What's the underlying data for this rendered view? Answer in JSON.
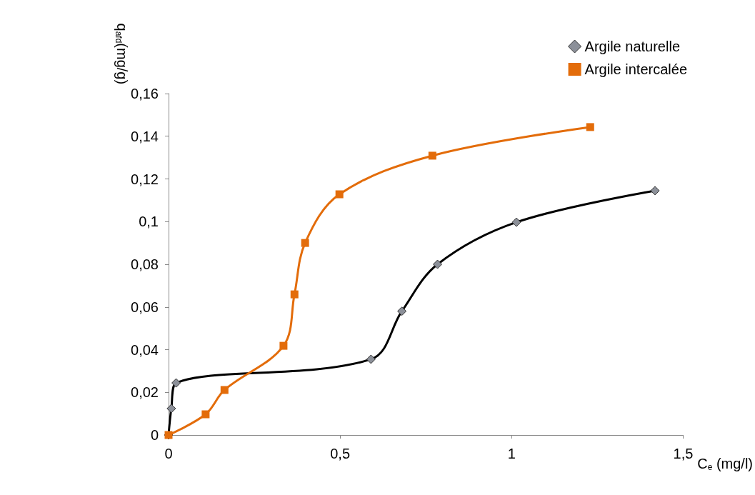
{
  "chart_data": {
    "type": "line",
    "xlabel": "C$_{e}$ (mg/l)",
    "ylabel": "q$_{afd}$(mg/g)",
    "series": [
      {
        "name": "Argile naturelle",
        "color": "#000000",
        "marker": "diamond",
        "x": [
          0,
          0.008,
          0.022,
          0.59,
          0.68,
          0.784,
          1.014,
          1.418
        ],
        "values": [
          0,
          0.0124,
          0.0244,
          0.0355,
          0.058,
          0.08,
          0.0997,
          0.1145
        ]
      },
      {
        "name": "Argile intercalée",
        "color": "#e36c0a",
        "marker": "square",
        "x": [
          0,
          0.108,
          0.163,
          0.335,
          0.367,
          0.398,
          0.498,
          0.769,
          1.229
        ],
        "values": [
          0,
          0.0097,
          0.0211,
          0.0418,
          0.0659,
          0.09,
          0.1128,
          0.1309,
          0.1443
        ]
      }
    ],
    "xlim": [
      0,
      1.5
    ],
    "xticks": [
      0,
      {
        "value": 0.5,
        "label": "0,5"
      },
      1,
      {
        "value": 1.5,
        "label": "1,5"
      }
    ],
    "ylim": [
      0,
      0.16
    ],
    "yticks": [
      0,
      {
        "value": 0.02,
        "label": "0,02"
      },
      {
        "value": 0.04,
        "label": "0,04"
      },
      {
        "value": 0.06,
        "label": "0,06"
      },
      {
        "value": 0.08,
        "label": "0,08"
      },
      {
        "value": 0.1,
        "label": "0,1"
      },
      {
        "value": 0.12,
        "label": "0,12"
      },
      {
        "value": 0.14,
        "label": "0,14"
      },
      {
        "value": 0.16,
        "label": "0,16"
      }
    ],
    "grid": false,
    "legend": "top right",
    "line_style": "solid"
  }
}
